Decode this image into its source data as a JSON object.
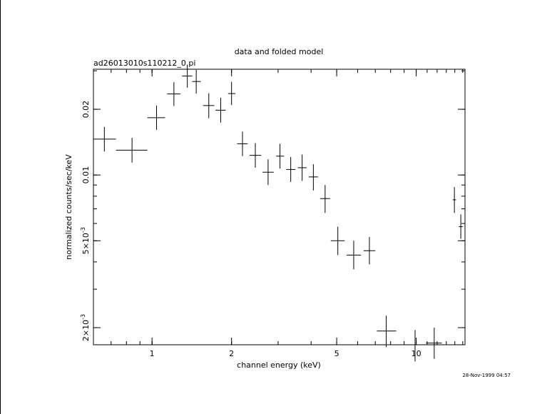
{
  "chart_data": {
    "type": "scatter",
    "title": "data and folded model",
    "subtitle": "ad26013010s110212_0.pi",
    "xlabel": "channel energy (keV)",
    "ylabel": "normalized counts/sec/keV",
    "timestamp": "28-Nov-1999 04:57",
    "x_scale": "log",
    "y_scale": "log",
    "xlim": [
      0.6,
      15.3
    ],
    "ylim": [
      0.00167,
      0.0305
    ],
    "x_ticks": [
      {
        "value": 1,
        "label": "1"
      },
      {
        "value": 2,
        "label": "2"
      },
      {
        "value": 5,
        "label": "5"
      },
      {
        "value": 10,
        "label": "10"
      }
    ],
    "y_ticks": [
      {
        "value": 0.002,
        "label": "2×10",
        "exp": "-3"
      },
      {
        "value": 0.005,
        "label": "5×10",
        "exp": "-3"
      },
      {
        "value": 0.01,
        "label": "0.01",
        "exp": ""
      },
      {
        "value": 0.02,
        "label": "0.02",
        "exp": ""
      }
    ],
    "grid": false,
    "series": [
      {
        "points": [
          {
            "x": 0.66,
            "xlo": 0.6,
            "xhi": 0.73,
            "y": 0.0146,
            "ylo": 0.0128,
            "yhi": 0.0166
          },
          {
            "x": 0.84,
            "xlo": 0.73,
            "xhi": 0.96,
            "y": 0.013,
            "ylo": 0.0114,
            "yhi": 0.0148
          },
          {
            "x": 1.04,
            "xlo": 0.96,
            "xhi": 1.12,
            "y": 0.0183,
            "ylo": 0.0161,
            "yhi": 0.0208
          },
          {
            "x": 1.21,
            "xlo": 1.14,
            "xhi": 1.28,
            "y": 0.0235,
            "ylo": 0.0207,
            "yhi": 0.0266
          },
          {
            "x": 1.36,
            "xlo": 1.3,
            "xhi": 1.42,
            "y": 0.0284,
            "ylo": 0.0251,
            "yhi": 0.0318
          },
          {
            "x": 1.47,
            "xlo": 1.42,
            "xhi": 1.53,
            "y": 0.0268,
            "ylo": 0.0236,
            "yhi": 0.0303
          },
          {
            "x": 1.64,
            "xlo": 1.56,
            "xhi": 1.72,
            "y": 0.0208,
            "ylo": 0.0182,
            "yhi": 0.0237
          },
          {
            "x": 1.82,
            "xlo": 1.74,
            "xhi": 1.9,
            "y": 0.0198,
            "ylo": 0.0174,
            "yhi": 0.0226
          },
          {
            "x": 2.0,
            "xlo": 1.94,
            "xhi": 2.07,
            "y": 0.0236,
            "ylo": 0.0209,
            "yhi": 0.0267
          },
          {
            "x": 2.2,
            "xlo": 2.1,
            "xhi": 2.3,
            "y": 0.0139,
            "ylo": 0.0122,
            "yhi": 0.0158
          },
          {
            "x": 2.46,
            "xlo": 2.34,
            "xhi": 2.59,
            "y": 0.0123,
            "ylo": 0.0108,
            "yhi": 0.014
          },
          {
            "x": 2.75,
            "xlo": 2.62,
            "xhi": 2.89,
            "y": 0.0103,
            "ylo": 0.009,
            "yhi": 0.0118
          },
          {
            "x": 3.05,
            "xlo": 2.95,
            "xhi": 3.16,
            "y": 0.0122,
            "ylo": 0.0107,
            "yhi": 0.0139
          },
          {
            "x": 3.35,
            "xlo": 3.22,
            "xhi": 3.49,
            "y": 0.0106,
            "ylo": 0.0093,
            "yhi": 0.0121
          },
          {
            "x": 3.7,
            "xlo": 3.56,
            "xhi": 3.85,
            "y": 0.0108,
            "ylo": 0.0094,
            "yhi": 0.0124
          },
          {
            "x": 4.08,
            "xlo": 3.92,
            "xhi": 4.25,
            "y": 0.0098,
            "ylo": 0.0085,
            "yhi": 0.0112
          },
          {
            "x": 4.52,
            "xlo": 4.33,
            "xhi": 4.72,
            "y": 0.0078,
            "ylo": 0.0067,
            "yhi": 0.009
          },
          {
            "x": 5.05,
            "xlo": 4.75,
            "xhi": 5.36,
            "y": 0.005,
            "ylo": 0.0043,
            "yhi": 0.0058
          },
          {
            "x": 5.8,
            "xlo": 5.45,
            "xhi": 6.18,
            "y": 0.0043,
            "ylo": 0.0037,
            "yhi": 0.005
          },
          {
            "x": 6.65,
            "xlo": 6.32,
            "xhi": 7.0,
            "y": 0.0045,
            "ylo": 0.0039,
            "yhi": 0.0052
          },
          {
            "x": 7.7,
            "xlo": 7.1,
            "xhi": 8.4,
            "y": 0.00193,
            "ylo": 0.00163,
            "yhi": 0.00227
          },
          {
            "x": 9.9,
            "xlo": 9.0,
            "xhi": 10.8,
            "y": 0.00167,
            "ylo": 0.0014,
            "yhi": 0.00195
          },
          {
            "x": 11.7,
            "xlo": 10.9,
            "xhi": 12.5,
            "y": 0.0017,
            "ylo": 0.00144,
            "yhi": 0.002
          },
          {
            "x": 13.95,
            "xlo": 13.75,
            "xhi": 14.15,
            "y": 0.0077,
            "ylo": 0.0067,
            "yhi": 0.0088
          },
          {
            "x": 14.75,
            "xlo": 14.5,
            "xhi": 15.0,
            "y": 0.0058,
            "ylo": 0.0051,
            "yhi": 0.0066
          }
        ]
      }
    ]
  }
}
